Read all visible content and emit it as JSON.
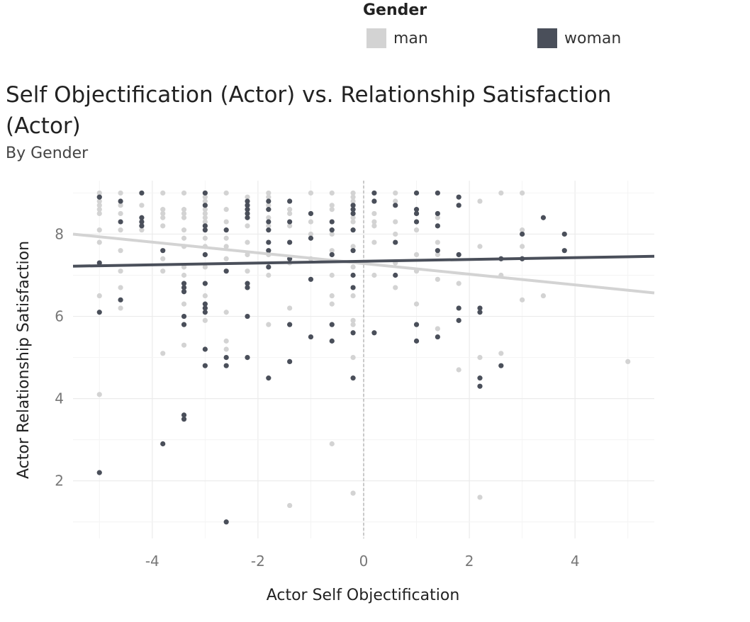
{
  "legend": {
    "title": "Gender",
    "items": [
      {
        "label": "man",
        "color": "#d3d3d3"
      },
      {
        "label": "woman",
        "color": "#4a4f5a"
      }
    ]
  },
  "chart_data": {
    "type": "scatter",
    "title": "Self Objectification (Actor) vs. Relationship Satisfaction (Actor)",
    "subtitle": "By Gender",
    "xlabel": "Actor Self Objectification",
    "ylabel": "Actor Relationship Satisfaction",
    "xlim": [
      -5.5,
      5.5
    ],
    "ylim": [
      0.6,
      9.3
    ],
    "xticks": [
      -4,
      -2,
      0,
      2,
      4
    ],
    "xtick_labels": [
      "-4",
      "-2",
      "0",
      "2",
      "4"
    ],
    "yticks": [
      2,
      4,
      6,
      8
    ],
    "ytick_labels": [
      "2",
      "4",
      "6",
      "8"
    ],
    "grid": true,
    "reference_line_x": 0,
    "legend_position": "top-right",
    "series": [
      {
        "name": "man",
        "color": "#d3d3d3",
        "trend": {
          "x": [
            -5.5,
            5.5
          ],
          "y": [
            8.0,
            6.57
          ]
        },
        "points": [
          [
            -5.0,
            9.0
          ],
          [
            -5.0,
            8.9
          ],
          [
            -5.0,
            8.8
          ],
          [
            -5.0,
            8.7
          ],
          [
            -5.0,
            8.6
          ],
          [
            -5.0,
            8.5
          ],
          [
            -5.0,
            8.1
          ],
          [
            -5.0,
            7.8
          ],
          [
            -5.0,
            6.5
          ],
          [
            -5.0,
            4.1
          ],
          [
            -4.6,
            9.0
          ],
          [
            -4.6,
            8.7
          ],
          [
            -4.6,
            8.5
          ],
          [
            -4.6,
            8.1
          ],
          [
            -4.6,
            7.6
          ],
          [
            -4.6,
            7.1
          ],
          [
            -4.6,
            6.7
          ],
          [
            -4.6,
            6.2
          ],
          [
            -4.2,
            8.7
          ],
          [
            -4.2,
            8.3
          ],
          [
            -4.2,
            8.1
          ],
          [
            -3.8,
            9.0
          ],
          [
            -3.8,
            8.6
          ],
          [
            -3.8,
            8.5
          ],
          [
            -3.8,
            8.4
          ],
          [
            -3.8,
            8.2
          ],
          [
            -3.8,
            7.4
          ],
          [
            -3.8,
            7.1
          ],
          [
            -3.8,
            5.1
          ],
          [
            -3.4,
            9.0
          ],
          [
            -3.4,
            8.6
          ],
          [
            -3.4,
            8.5
          ],
          [
            -3.4,
            8.4
          ],
          [
            -3.4,
            8.1
          ],
          [
            -3.4,
            7.9
          ],
          [
            -3.4,
            7.7
          ],
          [
            -3.4,
            7.2
          ],
          [
            -3.4,
            7.0
          ],
          [
            -3.4,
            6.6
          ],
          [
            -3.4,
            6.3
          ],
          [
            -3.4,
            5.3
          ],
          [
            -3.0,
            9.0
          ],
          [
            -3.0,
            8.9
          ],
          [
            -3.0,
            8.8
          ],
          [
            -3.0,
            8.6
          ],
          [
            -3.0,
            8.5
          ],
          [
            -3.0,
            8.4
          ],
          [
            -3.0,
            8.3
          ],
          [
            -3.0,
            7.9
          ],
          [
            -3.0,
            7.7
          ],
          [
            -3.0,
            7.2
          ],
          [
            -3.0,
            6.5
          ],
          [
            -3.0,
            6.2
          ],
          [
            -3.0,
            5.9
          ],
          [
            -2.6,
            9.0
          ],
          [
            -2.6,
            8.6
          ],
          [
            -2.6,
            8.3
          ],
          [
            -2.6,
            7.9
          ],
          [
            -2.6,
            7.7
          ],
          [
            -2.6,
            7.4
          ],
          [
            -2.6,
            7.1
          ],
          [
            -2.6,
            6.1
          ],
          [
            -2.6,
            5.4
          ],
          [
            -2.6,
            5.2
          ],
          [
            -2.2,
            8.9
          ],
          [
            -2.2,
            8.6
          ],
          [
            -2.2,
            8.4
          ],
          [
            -2.2,
            8.2
          ],
          [
            -2.2,
            7.8
          ],
          [
            -2.2,
            7.5
          ],
          [
            -2.2,
            7.1
          ],
          [
            -2.2,
            6.7
          ],
          [
            -1.8,
            9.0
          ],
          [
            -1.8,
            8.9
          ],
          [
            -1.8,
            8.7
          ],
          [
            -1.8,
            8.6
          ],
          [
            -1.8,
            8.4
          ],
          [
            -1.8,
            8.2
          ],
          [
            -1.8,
            7.5
          ],
          [
            -1.8,
            7.0
          ],
          [
            -1.8,
            5.8
          ],
          [
            -1.4,
            8.6
          ],
          [
            -1.4,
            8.5
          ],
          [
            -1.4,
            8.2
          ],
          [
            -1.4,
            7.8
          ],
          [
            -1.4,
            7.3
          ],
          [
            -1.4,
            6.2
          ],
          [
            -1.4,
            1.4
          ],
          [
            -1.0,
            9.0
          ],
          [
            -1.0,
            8.3
          ],
          [
            -1.0,
            8.0
          ],
          [
            -1.0,
            7.4
          ],
          [
            -0.6,
            9.0
          ],
          [
            -0.6,
            8.7
          ],
          [
            -0.6,
            8.6
          ],
          [
            -0.6,
            8.0
          ],
          [
            -0.6,
            7.6
          ],
          [
            -0.6,
            7.0
          ],
          [
            -0.6,
            6.5
          ],
          [
            -0.6,
            6.3
          ],
          [
            -0.6,
            2.9
          ],
          [
            -0.2,
            9.0
          ],
          [
            -0.2,
            8.9
          ],
          [
            -0.2,
            8.8
          ],
          [
            -0.2,
            8.4
          ],
          [
            -0.2,
            8.3
          ],
          [
            -0.2,
            7.7
          ],
          [
            -0.2,
            7.2
          ],
          [
            -0.2,
            6.5
          ],
          [
            -0.2,
            5.9
          ],
          [
            -0.2,
            5.8
          ],
          [
            -0.2,
            5.0
          ],
          [
            -0.2,
            1.7
          ],
          [
            0.2,
            8.8
          ],
          [
            0.2,
            8.5
          ],
          [
            0.2,
            8.3
          ],
          [
            0.2,
            8.2
          ],
          [
            0.2,
            7.8
          ],
          [
            0.2,
            7.0
          ],
          [
            0.6,
            9.0
          ],
          [
            0.6,
            8.8
          ],
          [
            0.6,
            8.3
          ],
          [
            0.6,
            8.0
          ],
          [
            0.6,
            7.3
          ],
          [
            0.6,
            6.7
          ],
          [
            1.0,
            8.5
          ],
          [
            1.0,
            8.1
          ],
          [
            1.0,
            7.5
          ],
          [
            1.0,
            7.1
          ],
          [
            1.0,
            6.3
          ],
          [
            1.4,
            8.4
          ],
          [
            1.4,
            7.8
          ],
          [
            1.4,
            7.5
          ],
          [
            1.4,
            6.9
          ],
          [
            1.4,
            5.7
          ],
          [
            1.8,
            6.8
          ],
          [
            1.8,
            4.7
          ],
          [
            2.2,
            8.8
          ],
          [
            2.2,
            7.7
          ],
          [
            2.2,
            5.0
          ],
          [
            2.2,
            1.6
          ],
          [
            2.6,
            9.0
          ],
          [
            2.6,
            7.0
          ],
          [
            2.6,
            5.1
          ],
          [
            3.0,
            9.0
          ],
          [
            3.0,
            8.1
          ],
          [
            3.0,
            7.7
          ],
          [
            3.0,
            6.4
          ],
          [
            3.4,
            6.5
          ],
          [
            5.0,
            4.9
          ]
        ]
      },
      {
        "name": "woman",
        "color": "#4a4f5a",
        "trend": {
          "x": [
            -5.5,
            5.5
          ],
          "y": [
            7.22,
            7.46
          ]
        },
        "points": [
          [
            -5.0,
            8.9
          ],
          [
            -5.0,
            7.3
          ],
          [
            -5.0,
            6.1
          ],
          [
            -5.0,
            2.2
          ],
          [
            -4.6,
            8.8
          ],
          [
            -4.6,
            8.3
          ],
          [
            -4.6,
            6.4
          ],
          [
            -4.2,
            9.0
          ],
          [
            -4.2,
            8.4
          ],
          [
            -4.2,
            8.3
          ],
          [
            -4.2,
            8.2
          ],
          [
            -3.8,
            7.6
          ],
          [
            -3.8,
            2.9
          ],
          [
            -3.4,
            6.8
          ],
          [
            -3.4,
            6.7
          ],
          [
            -3.4,
            6.6
          ],
          [
            -3.4,
            6.0
          ],
          [
            -3.4,
            5.8
          ],
          [
            -3.4,
            3.6
          ],
          [
            -3.4,
            3.5
          ],
          [
            -3.0,
            9.0
          ],
          [
            -3.0,
            8.7
          ],
          [
            -3.0,
            8.2
          ],
          [
            -3.0,
            8.1
          ],
          [
            -3.0,
            7.5
          ],
          [
            -3.0,
            6.8
          ],
          [
            -3.0,
            6.3
          ],
          [
            -3.0,
            6.2
          ],
          [
            -3.0,
            6.1
          ],
          [
            -3.0,
            5.2
          ],
          [
            -3.0,
            4.8
          ],
          [
            -2.6,
            8.1
          ],
          [
            -2.6,
            7.1
          ],
          [
            -2.6,
            5.0
          ],
          [
            -2.6,
            4.8
          ],
          [
            -2.6,
            1.0
          ],
          [
            -2.2,
            8.8
          ],
          [
            -2.2,
            8.7
          ],
          [
            -2.2,
            8.6
          ],
          [
            -2.2,
            8.5
          ],
          [
            -2.2,
            8.4
          ],
          [
            -2.2,
            6.8
          ],
          [
            -2.2,
            6.7
          ],
          [
            -2.2,
            6.0
          ],
          [
            -2.2,
            5.0
          ],
          [
            -1.8,
            8.8
          ],
          [
            -1.8,
            8.6
          ],
          [
            -1.8,
            8.3
          ],
          [
            -1.8,
            8.1
          ],
          [
            -1.8,
            7.8
          ],
          [
            -1.8,
            7.6
          ],
          [
            -1.8,
            7.2
          ],
          [
            -1.8,
            4.5
          ],
          [
            -1.4,
            8.8
          ],
          [
            -1.4,
            8.3
          ],
          [
            -1.4,
            7.8
          ],
          [
            -1.4,
            7.4
          ],
          [
            -1.4,
            5.8
          ],
          [
            -1.4,
            4.9
          ],
          [
            -1.0,
            8.5
          ],
          [
            -1.0,
            7.9
          ],
          [
            -1.0,
            6.9
          ],
          [
            -1.0,
            5.5
          ],
          [
            -0.6,
            8.3
          ],
          [
            -0.6,
            8.1
          ],
          [
            -0.6,
            7.5
          ],
          [
            -0.6,
            5.8
          ],
          [
            -0.6,
            5.4
          ],
          [
            -0.2,
            8.7
          ],
          [
            -0.2,
            8.6
          ],
          [
            -0.2,
            8.5
          ],
          [
            -0.2,
            8.1
          ],
          [
            -0.2,
            7.6
          ],
          [
            -0.2,
            7.0
          ],
          [
            -0.2,
            6.7
          ],
          [
            -0.2,
            5.6
          ],
          [
            -0.2,
            4.5
          ],
          [
            0.2,
            9.0
          ],
          [
            0.2,
            8.8
          ],
          [
            0.2,
            5.6
          ],
          [
            0.6,
            8.7
          ],
          [
            0.6,
            7.8
          ],
          [
            0.6,
            7.0
          ],
          [
            1.0,
            9.0
          ],
          [
            1.0,
            8.6
          ],
          [
            1.0,
            8.5
          ],
          [
            1.0,
            8.3
          ],
          [
            1.0,
            5.8
          ],
          [
            1.0,
            5.4
          ],
          [
            1.4,
            9.0
          ],
          [
            1.4,
            8.5
          ],
          [
            1.4,
            8.2
          ],
          [
            1.4,
            7.6
          ],
          [
            1.4,
            5.5
          ],
          [
            1.8,
            8.9
          ],
          [
            1.8,
            8.7
          ],
          [
            1.8,
            7.5
          ],
          [
            1.8,
            6.2
          ],
          [
            1.8,
            5.9
          ],
          [
            2.2,
            6.2
          ],
          [
            2.2,
            6.1
          ],
          [
            2.2,
            4.5
          ],
          [
            2.2,
            4.3
          ],
          [
            2.6,
            7.4
          ],
          [
            2.6,
            4.8
          ],
          [
            3.0,
            8.0
          ],
          [
            3.0,
            7.4
          ],
          [
            3.4,
            8.4
          ],
          [
            3.8,
            8.0
          ],
          [
            3.8,
            7.6
          ]
        ]
      }
    ]
  }
}
